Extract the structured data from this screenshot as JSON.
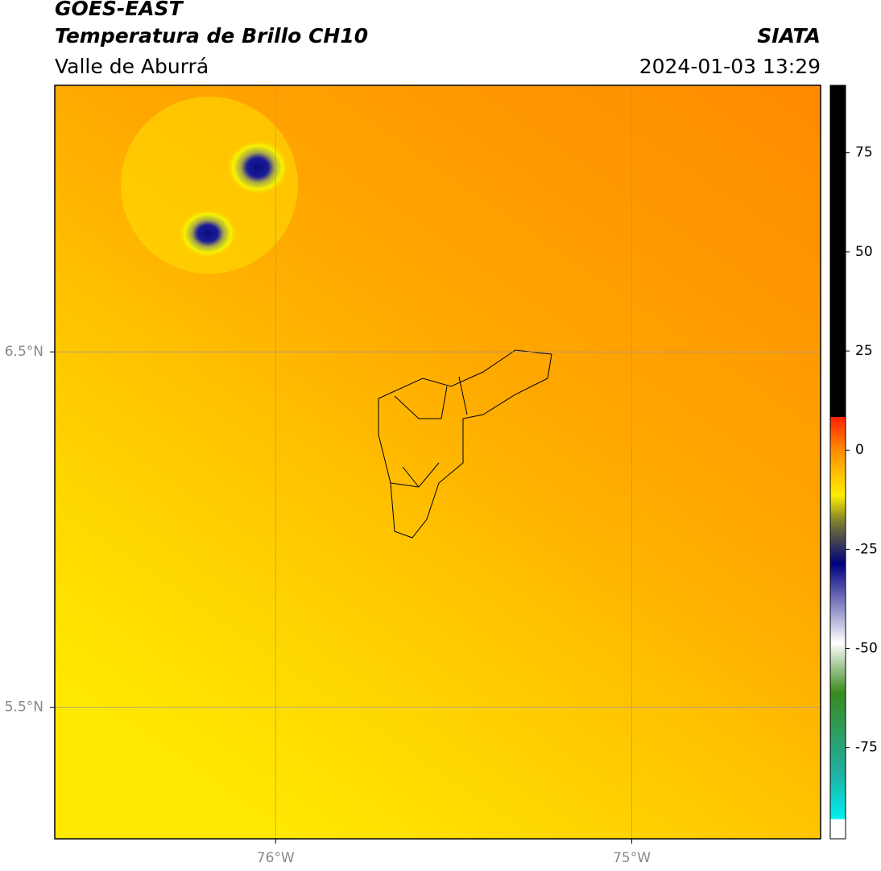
{
  "header": {
    "title": "GOES-EAST",
    "subtitle": "Temperatura de Brillo CH10",
    "region": "Valle de Aburrá",
    "source": "SIATA",
    "timestamp": "2024-01-03 13:29"
  },
  "map": {
    "lat_lim": [
      5.13,
      7.25
    ],
    "lon_lim": [
      -76.62,
      -74.47
    ],
    "lat_ticks": [
      {
        "value": 6.5,
        "label": "6.5°N"
      },
      {
        "value": 5.5,
        "label": "5.5°N"
      }
    ],
    "lon_ticks": [
      {
        "value": -76,
        "label": "76°W"
      },
      {
        "value": -75,
        "label": "75°W"
      }
    ],
    "grid": true
  },
  "colorbar": {
    "lim": [
      -98,
      92
    ],
    "ticks": [
      75,
      50,
      25,
      0,
      -25,
      -50,
      -75
    ]
  }
}
